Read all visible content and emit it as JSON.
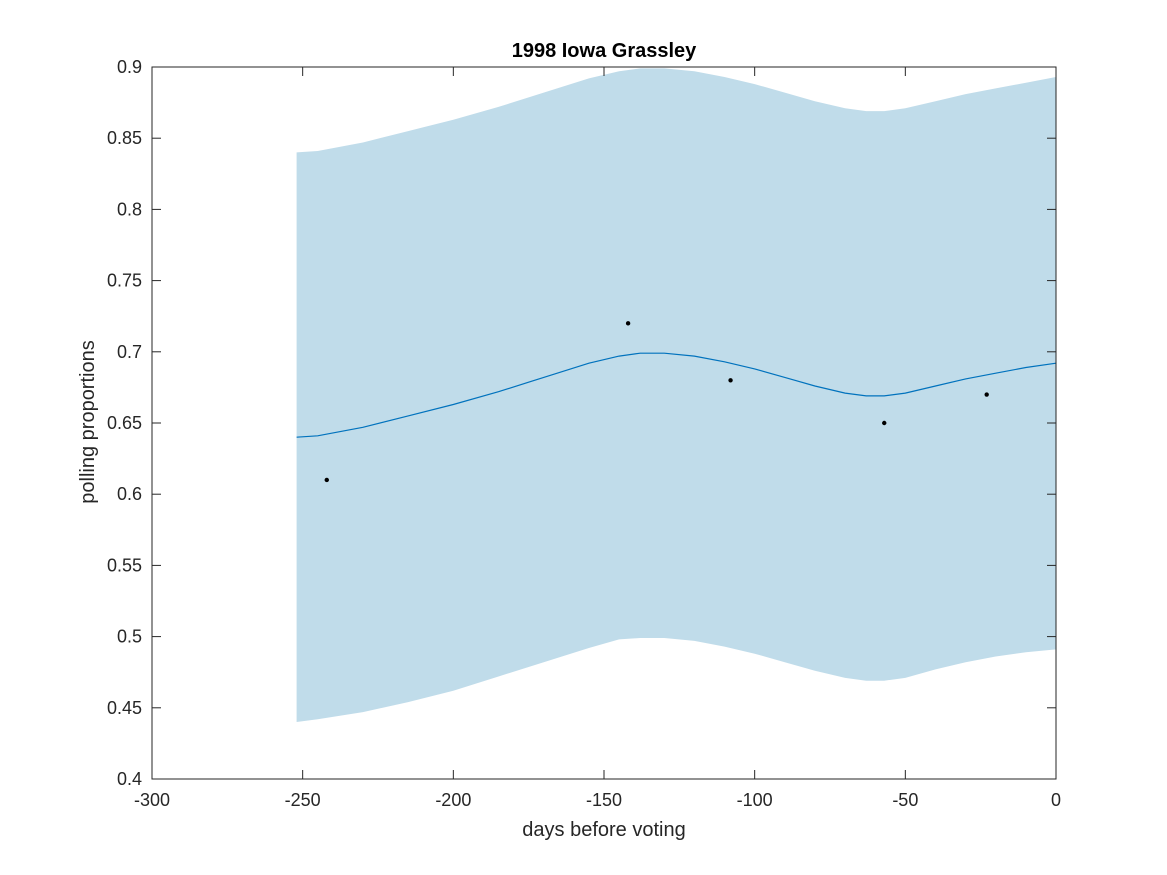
{
  "chart_data": {
    "type": "line",
    "title": "1998 Iowa Grassley",
    "xlabel": "days before voting",
    "ylabel": "polling proportions",
    "xlim": [
      -300,
      0
    ],
    "ylim": [
      0.4,
      0.9
    ],
    "xticks": [
      -300,
      -250,
      -200,
      -150,
      -100,
      -50,
      0
    ],
    "yticks": [
      0.4,
      0.45,
      0.5,
      0.55,
      0.6,
      0.65,
      0.7,
      0.75,
      0.8,
      0.85,
      0.9
    ],
    "grid": false,
    "legend": "none",
    "colors": {
      "band": "#c0dcea",
      "line": "#0072bd",
      "points": "#000000",
      "axes": "#262626"
    },
    "mean_line": {
      "x": [
        -252,
        -245,
        -230,
        -215,
        -200,
        -185,
        -170,
        -155,
        -145,
        -138,
        -130,
        -120,
        -110,
        -100,
        -90,
        -80,
        -70,
        -63,
        -57,
        -50,
        -40,
        -30,
        -20,
        -10,
        0
      ],
      "y": [
        0.64,
        0.641,
        0.647,
        0.655,
        0.663,
        0.672,
        0.682,
        0.692,
        0.697,
        0.699,
        0.699,
        0.697,
        0.693,
        0.688,
        0.682,
        0.676,
        0.671,
        0.669,
        0.669,
        0.671,
        0.676,
        0.681,
        0.685,
        0.689,
        0.692
      ]
    },
    "band": {
      "x": [
        -252,
        -245,
        -230,
        -215,
        -200,
        -185,
        -170,
        -155,
        -145,
        -138,
        -130,
        -120,
        -110,
        -100,
        -90,
        -80,
        -70,
        -63,
        -57,
        -50,
        -40,
        -30,
        -20,
        -10,
        0
      ],
      "upper": [
        0.84,
        0.841,
        0.847,
        0.855,
        0.863,
        0.872,
        0.882,
        0.892,
        0.897,
        0.899,
        0.899,
        0.897,
        0.893,
        0.888,
        0.882,
        0.876,
        0.871,
        0.869,
        0.869,
        0.871,
        0.876,
        0.881,
        0.885,
        0.889,
        0.893
      ],
      "lower": [
        0.44,
        0.442,
        0.447,
        0.454,
        0.462,
        0.472,
        0.482,
        0.492,
        0.498,
        0.499,
        0.499,
        0.497,
        0.493,
        0.488,
        0.482,
        0.476,
        0.471,
        0.469,
        0.469,
        0.471,
        0.477,
        0.482,
        0.486,
        0.489,
        0.491
      ]
    },
    "points": {
      "x": [
        -242,
        -142,
        -108,
        -57,
        -23
      ],
      "y": [
        0.61,
        0.72,
        0.68,
        0.65,
        0.67
      ]
    }
  }
}
